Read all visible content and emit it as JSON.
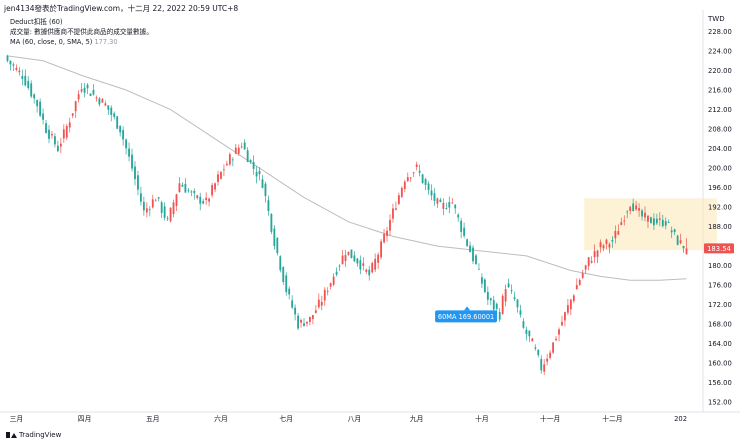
{
  "header": {
    "text": "jen4134發表於TradingView.com，十二月 22, 2022 20:59 UTC+8"
  },
  "legend": {
    "title": "Deduct扣抵 (60)",
    "volume_note": "成交量: 數據供應商不提供此商品的成交量數據。",
    "ma_label": "MA (60, close, 0, SMA, 5)",
    "ma_value": "177.30"
  },
  "footer": {
    "brand": "TradingView"
  },
  "chart_data": {
    "type": "candlestick",
    "currency": "TWD",
    "y_range": [
      150,
      232
    ],
    "y_ticks": [
      "152.00",
      "156.00",
      "160.00",
      "164.00",
      "168.00",
      "172.00",
      "176.00",
      "180.00",
      "184.00",
      "188.00",
      "192.00",
      "196.00",
      "200.00",
      "204.00",
      "208.00",
      "212.00",
      "216.00",
      "220.00",
      "224.00",
      "228.00"
    ],
    "y_tick_values": [
      152,
      156,
      160,
      164,
      168,
      172,
      176,
      180,
      184,
      188,
      192,
      196,
      200,
      204,
      208,
      212,
      216,
      220,
      224,
      228
    ],
    "x_labels": [
      "三月",
      "四月",
      "五月",
      "六月",
      "七月",
      "八月",
      "九月",
      "十月",
      "十一月",
      "十二月",
      "202"
    ],
    "x_label_index": [
      3,
      26,
      49,
      72,
      94,
      117,
      138,
      160,
      183,
      204,
      227
    ],
    "last_price_label": "183.54",
    "last_price": 183.54,
    "ma_annotation": "60MA 169.60001",
    "ma_annotation_value": 169.6,
    "ma_annotation_index": 155,
    "range_box": {
      "from_index": 195,
      "to_index": 233,
      "low": 183.2,
      "high": 193.8
    },
    "up_color": "#ef5350",
    "down_color": "#26a69a",
    "ma_color": "#bdbdbd",
    "anchors": [
      [
        0,
        222,
        0
      ],
      [
        5,
        219,
        -1
      ],
      [
        10,
        213,
        -1
      ],
      [
        13,
        208,
        -1
      ],
      [
        17,
        204,
        -1
      ],
      [
        21,
        210,
        1
      ],
      [
        25,
        217,
        1
      ],
      [
        29,
        215,
        -1
      ],
      [
        33,
        213,
        -1
      ],
      [
        38,
        208,
        -1
      ],
      [
        42,
        200,
        -1
      ],
      [
        46,
        191,
        -1
      ],
      [
        50,
        194,
        1
      ],
      [
        54,
        189,
        -1
      ],
      [
        58,
        197,
        1
      ],
      [
        63,
        194,
        -1
      ],
      [
        67,
        193,
        0
      ],
      [
        71,
        198,
        1
      ],
      [
        75,
        202,
        1
      ],
      [
        79,
        205,
        1
      ],
      [
        82,
        201,
        -1
      ],
      [
        86,
        197,
        -1
      ],
      [
        90,
        185,
        -1
      ],
      [
        94,
        175,
        -1
      ],
      [
        98,
        168,
        -1
      ],
      [
        102,
        169,
        1
      ],
      [
        106,
        173,
        1
      ],
      [
        110,
        178,
        1
      ],
      [
        114,
        183,
        1
      ],
      [
        118,
        181,
        -1
      ],
      [
        122,
        178,
        -1
      ],
      [
        126,
        184,
        1
      ],
      [
        130,
        191,
        1
      ],
      [
        134,
        198,
        1
      ],
      [
        138,
        200,
        1
      ],
      [
        142,
        195,
        -1
      ],
      [
        146,
        192,
        -1
      ],
      [
        150,
        193,
        1
      ],
      [
        154,
        186,
        -1
      ],
      [
        158,
        180,
        -1
      ],
      [
        162,
        173,
        -1
      ],
      [
        166,
        170,
        -1
      ],
      [
        168,
        176,
        1
      ],
      [
        171,
        173,
        -1
      ],
      [
        174,
        167,
        -1
      ],
      [
        177,
        164,
        -1
      ],
      [
        180,
        159,
        -1
      ],
      [
        184,
        164,
        1
      ],
      [
        188,
        170,
        1
      ],
      [
        192,
        176,
        1
      ],
      [
        196,
        181,
        1
      ],
      [
        200,
        184,
        1
      ],
      [
        204,
        185,
        1
      ],
      [
        207,
        189,
        1
      ],
      [
        210,
        193,
        1
      ],
      [
        214,
        190,
        -1
      ],
      [
        218,
        189,
        0
      ],
      [
        222,
        189,
        1
      ],
      [
        226,
        185,
        -1
      ],
      [
        229,
        183.54,
        1
      ]
    ],
    "ma_points": [
      [
        0,
        223
      ],
      [
        12,
        222
      ],
      [
        25,
        219
      ],
      [
        40,
        216
      ],
      [
        55,
        212
      ],
      [
        70,
        206
      ],
      [
        85,
        200
      ],
      [
        100,
        194
      ],
      [
        115,
        189
      ],
      [
        130,
        186
      ],
      [
        145,
        184
      ],
      [
        160,
        183
      ],
      [
        175,
        182
      ],
      [
        190,
        179
      ],
      [
        200,
        177.8
      ],
      [
        210,
        177
      ],
      [
        220,
        177
      ],
      [
        229,
        177.3
      ]
    ]
  }
}
